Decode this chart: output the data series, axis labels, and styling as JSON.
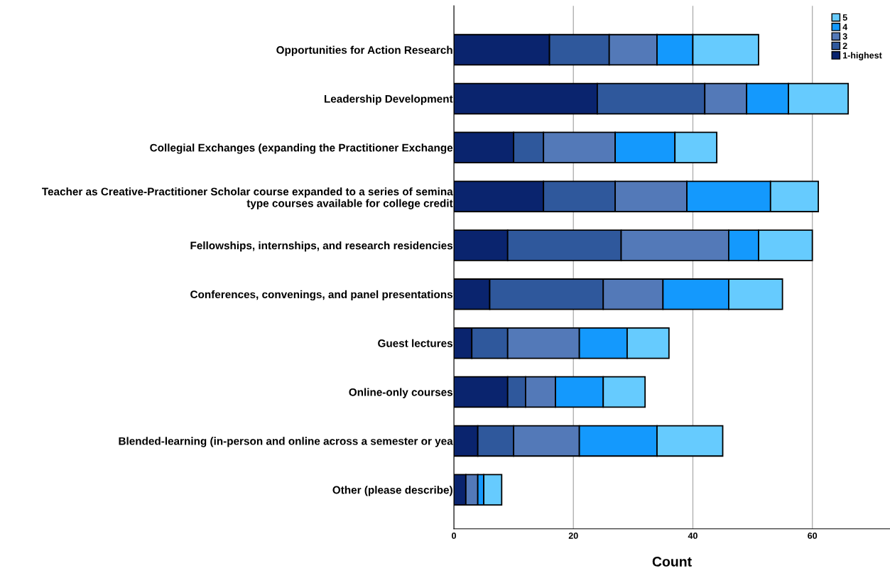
{
  "chart_data": {
    "type": "bar",
    "orientation": "horizontal",
    "stacked": true,
    "xlabel": "Count",
    "xlim": [
      0,
      73
    ],
    "xticks": [
      0,
      20,
      40,
      60
    ],
    "grid": "x",
    "legend": "top right",
    "categories": [
      "Opportunities for Action Research",
      "Leadership Development",
      "Collegial Exchanges (expanding the Practitioner Exchange",
      "Teacher as Creative-Practitioner Scholar course expanded to a series of semina\ntype courses available for college credit",
      "Fellowships, internships, and research residencies",
      "Conferences, convenings, and panel presentations",
      "Guest lectures",
      "Online-only courses",
      "Blended-learning (in-person and online across a semester or yea",
      "Other (please describe)"
    ],
    "series": [
      {
        "name": "1-highest",
        "color": "#0a246e",
        "values": [
          16,
          24,
          10,
          15,
          9,
          6,
          3,
          9,
          4,
          2
        ]
      },
      {
        "name": "2",
        "color": "#2f589c",
        "values": [
          10,
          18,
          5,
          12,
          19,
          19,
          6,
          3,
          6,
          0
        ]
      },
      {
        "name": "3",
        "color": "#5379b8",
        "values": [
          8,
          7,
          12,
          12,
          18,
          10,
          12,
          5,
          11,
          2
        ]
      },
      {
        "name": "4",
        "color": "#1499fd",
        "values": [
          6,
          7,
          10,
          14,
          5,
          11,
          8,
          8,
          13,
          1
        ]
      },
      {
        "name": "5",
        "color": "#66cbfe",
        "values": [
          11,
          10,
          7,
          8,
          9,
          9,
          7,
          7,
          11,
          3
        ]
      }
    ]
  }
}
